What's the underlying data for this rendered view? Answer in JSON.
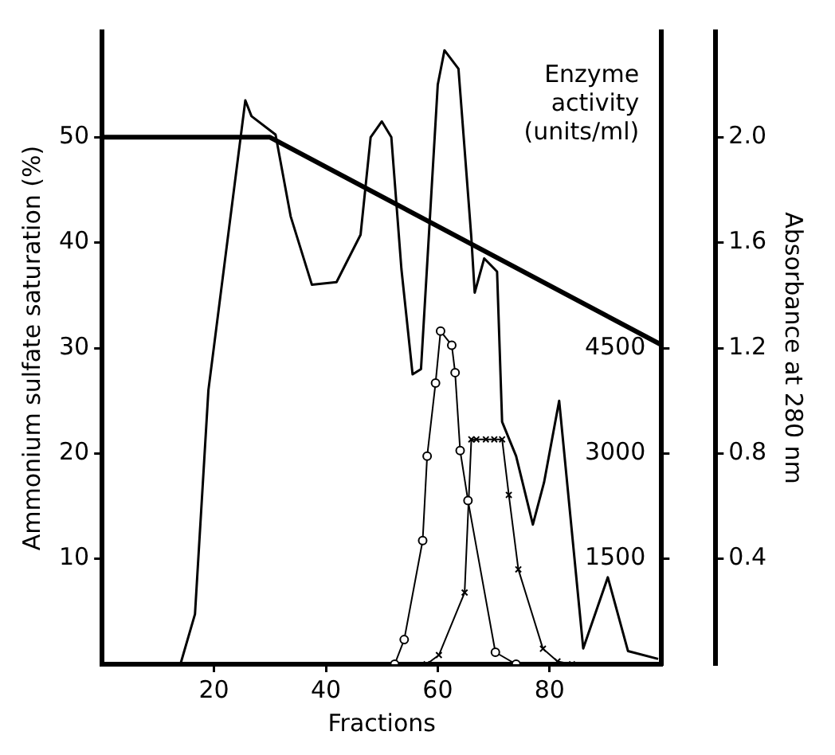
{
  "chart_data": {
    "type": "line",
    "xlabel": "Fractions",
    "ylabel": "Ammonium sulfate saturation (%)",
    "y2label": "Absorbance at 280 nm",
    "y3label": "Enzyme activity (units/ml)",
    "xlim": [
      0,
      100
    ],
    "xticks": [
      20,
      40,
      60,
      80
    ],
    "ylim": [
      0,
      60
    ],
    "yticks": [
      10,
      20,
      30,
      40,
      50
    ],
    "y2lim": [
      0,
      2.4
    ],
    "y2ticks": [
      0.4,
      0.8,
      1.2,
      1.6,
      {
        "value": 2,
        "label": "2.0"
      }
    ],
    "y3lim": [
      0,
      9000
    ],
    "y3ticks": [
      1500,
      3000,
      4500
    ],
    "grid": false,
    "legend": false,
    "marker": "none",
    "line_style": "solid",
    "series": [
      {
        "color": "#000000",
        "axis": "y",
        "x": [
          0,
          30,
          100
        ],
        "values": [
          50,
          50,
          30.3
        ]
      },
      {
        "color": "#000000",
        "axis": "y2",
        "x": [
          14,
          16.6,
          19,
          25.6,
          26.7,
          31,
          33.7,
          37.5,
          41.9,
          46.2,
          48,
          50,
          51.7,
          53.5,
          55.5,
          57,
          60,
          61.2,
          63.7,
          66,
          66.6,
          68.3,
          70.6,
          71.5,
          74,
          77,
          79,
          81.7,
          86,
          90.4,
          94,
          99.4
        ],
        "values": [
          0,
          0.19,
          1.04,
          2.14,
          2.08,
          2.01,
          1.7,
          1.44,
          1.45,
          1.63,
          2.0,
          2.06,
          2.0,
          1.5,
          1.1,
          1.12,
          2.2,
          2.33,
          2.26,
          1.62,
          1.41,
          1.54,
          1.49,
          0.92,
          0.79,
          0.53,
          0.69,
          1.0,
          0.06,
          0.33,
          0.05,
          0.02
        ]
      },
      {
        "color": "#000000",
        "axis": "y3",
        "marker": "circle",
        "x": [
          52.3,
          54,
          57.3,
          58.1,
          59.6,
          60.5,
          62.5,
          63.1,
          64,
          65.4,
          70.3,
          74
        ],
        "values": [
          0,
          350,
          1760,
          2960,
          4000,
          4740,
          4540,
          4150,
          3040,
          2330,
          170,
          0
        ]
      },
      {
        "color": "#000000",
        "axis": "y3",
        "marker": "cross",
        "x": [
          58,
          60.2,
          64.8,
          66,
          66.9,
          68.6,
          70.1,
          71.5,
          72.7,
          74.4,
          78.8,
          81.4,
          84
        ],
        "values": [
          0,
          130,
          1020,
          3200,
          3200,
          3200,
          3200,
          3200,
          2410,
          1350,
          220,
          40,
          0
        ]
      }
    ]
  }
}
